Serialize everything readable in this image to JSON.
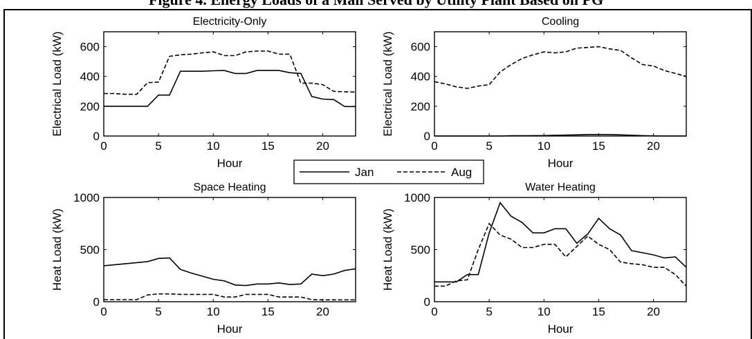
{
  "figure_title": "Figure 4. Energy Loads of a Mall Served by Utility Plant Based on PG",
  "legend": {
    "entries": [
      {
        "label": "Jan",
        "style": "solid"
      },
      {
        "label": "Aug",
        "style": "dashed"
      }
    ]
  },
  "chart_data": [
    {
      "type": "line",
      "title": "Electricity-Only",
      "xlabel": "Hour",
      "ylabel": "Electrical Load (kW)",
      "xlim": [
        0,
        23
      ],
      "ylim": [
        0,
        700
      ],
      "xticks": [
        0,
        5,
        10,
        15,
        20
      ],
      "yticks": [
        0,
        200,
        400,
        600
      ],
      "x": [
        0,
        1,
        2,
        3,
        4,
        5,
        6,
        7,
        8,
        9,
        10,
        11,
        12,
        13,
        14,
        15,
        16,
        17,
        18,
        19,
        20,
        21,
        22,
        23
      ],
      "series": [
        {
          "name": "Jan",
          "values": [
            200,
            200,
            200,
            200,
            200,
            275,
            275,
            435,
            435,
            435,
            438,
            440,
            420,
            420,
            440,
            440,
            440,
            425,
            420,
            265,
            248,
            245,
            198,
            198
          ]
        },
        {
          "name": "Aug",
          "values": [
            285,
            285,
            280,
            280,
            358,
            362,
            535,
            545,
            550,
            558,
            565,
            540,
            540,
            565,
            570,
            570,
            550,
            550,
            355,
            355,
            345,
            300,
            297,
            295
          ]
        }
      ]
    },
    {
      "type": "line",
      "title": "Cooling",
      "xlabel": "Hour",
      "ylabel": "Electrical Load (kW)",
      "xlim": [
        0,
        23
      ],
      "ylim": [
        0,
        700
      ],
      "xticks": [
        0,
        5,
        10,
        15,
        20
      ],
      "yticks": [
        0,
        200,
        400,
        600
      ],
      "x": [
        0,
        1,
        2,
        3,
        4,
        5,
        6,
        7,
        8,
        9,
        10,
        11,
        12,
        13,
        14,
        15,
        16,
        17,
        18,
        19,
        20,
        21,
        22,
        23
      ],
      "series": [
        {
          "name": "Jan",
          "values": [
            0,
            0,
            0,
            0,
            0,
            0,
            0,
            2,
            2,
            3,
            3,
            5,
            6,
            8,
            10,
            10,
            10,
            8,
            5,
            3,
            1,
            0,
            0,
            0
          ]
        },
        {
          "name": "Aug",
          "values": [
            365,
            350,
            330,
            320,
            335,
            345,
            430,
            480,
            520,
            545,
            565,
            558,
            565,
            590,
            595,
            600,
            585,
            575,
            525,
            480,
            470,
            440,
            420,
            400
          ]
        }
      ]
    },
    {
      "type": "line",
      "title": "Space Heating",
      "xlabel": "Hour",
      "ylabel": "Heat Load (kW)",
      "xlim": [
        0,
        23
      ],
      "ylim": [
        0,
        1000
      ],
      "xticks": [
        0,
        5,
        10,
        15,
        20
      ],
      "yticks": [
        0,
        500,
        1000
      ],
      "x": [
        0,
        1,
        2,
        3,
        4,
        5,
        6,
        7,
        8,
        9,
        10,
        11,
        12,
        13,
        14,
        15,
        16,
        17,
        18,
        19,
        20,
        21,
        22,
        23
      ],
      "series": [
        {
          "name": "Jan",
          "values": [
            345,
            355,
            365,
            375,
            385,
            415,
            420,
            310,
            275,
            245,
            215,
            200,
            160,
            155,
            170,
            170,
            180,
            165,
            170,
            265,
            250,
            265,
            300,
            315
          ]
        },
        {
          "name": "Aug",
          "values": [
            20,
            20,
            20,
            20,
            65,
            75,
            75,
            70,
            70,
            70,
            70,
            45,
            45,
            70,
            70,
            70,
            45,
            45,
            45,
            20,
            18,
            18,
            18,
            18
          ]
        }
      ]
    },
    {
      "type": "line",
      "title": "Water Heating",
      "xlabel": "Hour",
      "ylabel": "Heat Load (kW)",
      "xlim": [
        0,
        23
      ],
      "ylim": [
        0,
        1000
      ],
      "xticks": [
        0,
        5,
        10,
        15,
        20
      ],
      "yticks": [
        0,
        500,
        1000
      ],
      "x": [
        0,
        1,
        2,
        3,
        4,
        5,
        6,
        7,
        8,
        9,
        10,
        11,
        12,
        13,
        14,
        15,
        16,
        17,
        18,
        19,
        20,
        21,
        22,
        23
      ],
      "series": [
        {
          "name": "Jan",
          "values": [
            190,
            190,
            190,
            260,
            260,
            660,
            950,
            820,
            760,
            660,
            660,
            700,
            700,
            560,
            650,
            800,
            700,
            640,
            490,
            470,
            450,
            420,
            430,
            330
          ]
        },
        {
          "name": "Aug",
          "values": [
            150,
            150,
            200,
            210,
            500,
            750,
            640,
            600,
            520,
            520,
            550,
            550,
            430,
            530,
            630,
            550,
            500,
            380,
            365,
            355,
            330,
            330,
            260,
            150
          ]
        }
      ]
    }
  ]
}
